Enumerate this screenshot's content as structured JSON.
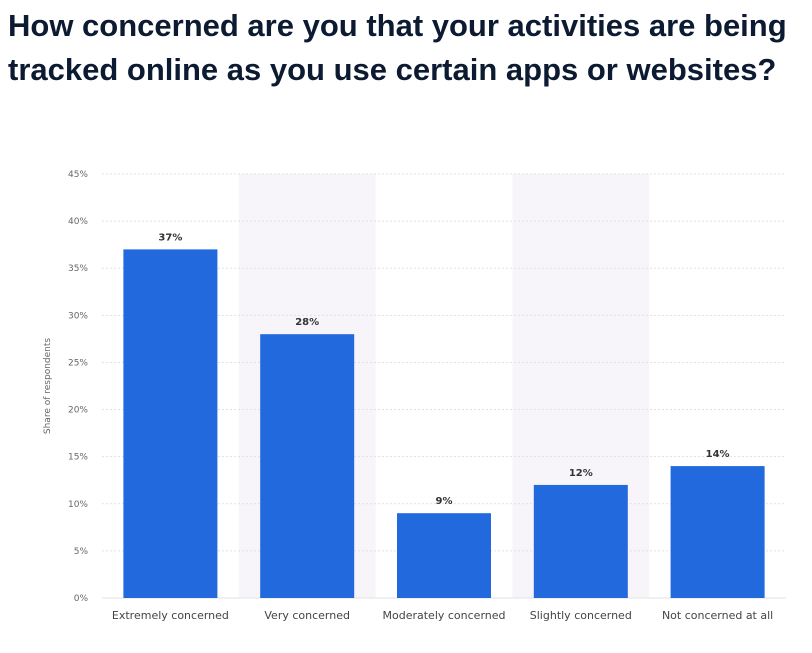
{
  "title": "How concerned are you that your activities are being tracked online as you use certain apps or websites?",
  "chart_data": {
    "type": "bar",
    "title": "",
    "ylabel": "Share of respondents",
    "xlabel": "",
    "categories": [
      "Extremely concerned",
      "Very concerned",
      "Moderately concerned",
      "Slightly concerned",
      "Not concerned at all"
    ],
    "values": [
      37,
      28,
      9,
      12,
      14
    ],
    "data_labels": [
      "37%",
      "28%",
      "9%",
      "12%",
      "14%"
    ],
    "ylim": [
      0,
      45
    ],
    "yticks": [
      0,
      5,
      10,
      15,
      20,
      25,
      30,
      35,
      40,
      45
    ],
    "ytick_labels": [
      "0%",
      "5%",
      "10%",
      "15%",
      "20%",
      "25%",
      "30%",
      "35%",
      "40%",
      "45%"
    ],
    "grid": true,
    "bar_color": "#2269de",
    "band_color": "#f7f5f9",
    "grid_color": "#e1e1e1"
  }
}
